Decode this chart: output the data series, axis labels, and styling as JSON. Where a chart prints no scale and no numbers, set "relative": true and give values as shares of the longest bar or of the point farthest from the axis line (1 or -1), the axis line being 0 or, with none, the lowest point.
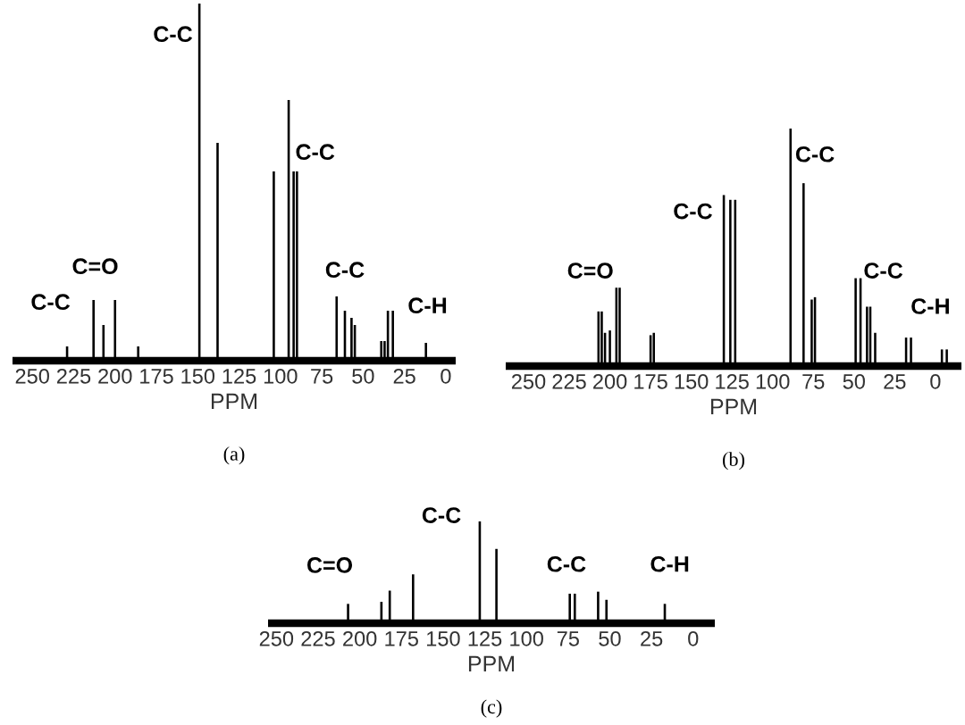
{
  "chart_data": [
    {
      "type": "bar",
      "relative": true,
      "color": "#000000",
      "xlabel": "PPM",
      "title": "(a)",
      "tick_labels": "x",
      "xlim": [
        262,
        -6
      ],
      "xticks": [
        250,
        225,
        200,
        175,
        150,
        125,
        100,
        75,
        50,
        25,
        0
      ],
      "x": [
        229,
        213,
        207,
        200,
        186,
        149,
        138,
        104,
        95,
        92,
        90,
        66,
        61,
        57,
        55,
        39,
        37,
        35,
        32,
        12
      ],
      "values": [
        0.04,
        0.17,
        0.1,
        0.17,
        0.04,
        1.0,
        0.61,
        0.53,
        0.73,
        0.53,
        0.53,
        0.18,
        0.14,
        0.12,
        0.1,
        0.055,
        0.055,
        0.14,
        0.14,
        0.05
      ],
      "annotations": [
        "C-C",
        "C=O",
        "C-C",
        "C-C",
        "C-C",
        "C-H"
      ]
    },
    {
      "type": "bar",
      "relative": true,
      "color": "#000000",
      "xlabel": "PPM",
      "title": "(b)",
      "tick_labels": "x",
      "xlim": [
        264,
        -16
      ],
      "xticks": [
        250,
        225,
        200,
        175,
        150,
        125,
        100,
        75,
        50,
        25,
        0
      ],
      "x": [
        207,
        205,
        203,
        200,
        196,
        194,
        175,
        173,
        130,
        126,
        123,
        89,
        81,
        76,
        74,
        49,
        46,
        42,
        40,
        37,
        18,
        15,
        -4,
        -7
      ],
      "values": [
        0.23,
        0.23,
        0.14,
        0.15,
        0.33,
        0.33,
        0.13,
        0.14,
        0.72,
        0.7,
        0.7,
        1.0,
        0.77,
        0.28,
        0.29,
        0.37,
        0.37,
        0.25,
        0.25,
        0.14,
        0.12,
        0.12,
        0.07,
        0.07
      ],
      "annotations": [
        "C=O",
        "C-C",
        "C-C",
        "C-C",
        "C-H"
      ]
    },
    {
      "type": "bar",
      "relative": true,
      "color": "#000000",
      "xlabel": "PPM",
      "title": "(c)",
      "tick_labels": "x",
      "xlim": [
        255,
        -13
      ],
      "xticks": [
        250,
        225,
        200,
        175,
        150,
        125,
        100,
        75,
        50,
        25,
        0
      ],
      "x": [
        207,
        187,
        182,
        168,
        128,
        118,
        74,
        71,
        57,
        52,
        17
      ],
      "values": [
        0.19,
        0.21,
        0.32,
        0.48,
        1.0,
        0.73,
        0.29,
        0.29,
        0.31,
        0.23,
        0.19
      ],
      "annotations": [
        "C=O",
        "C-C",
        "C-C",
        "C-H"
      ]
    }
  ]
}
